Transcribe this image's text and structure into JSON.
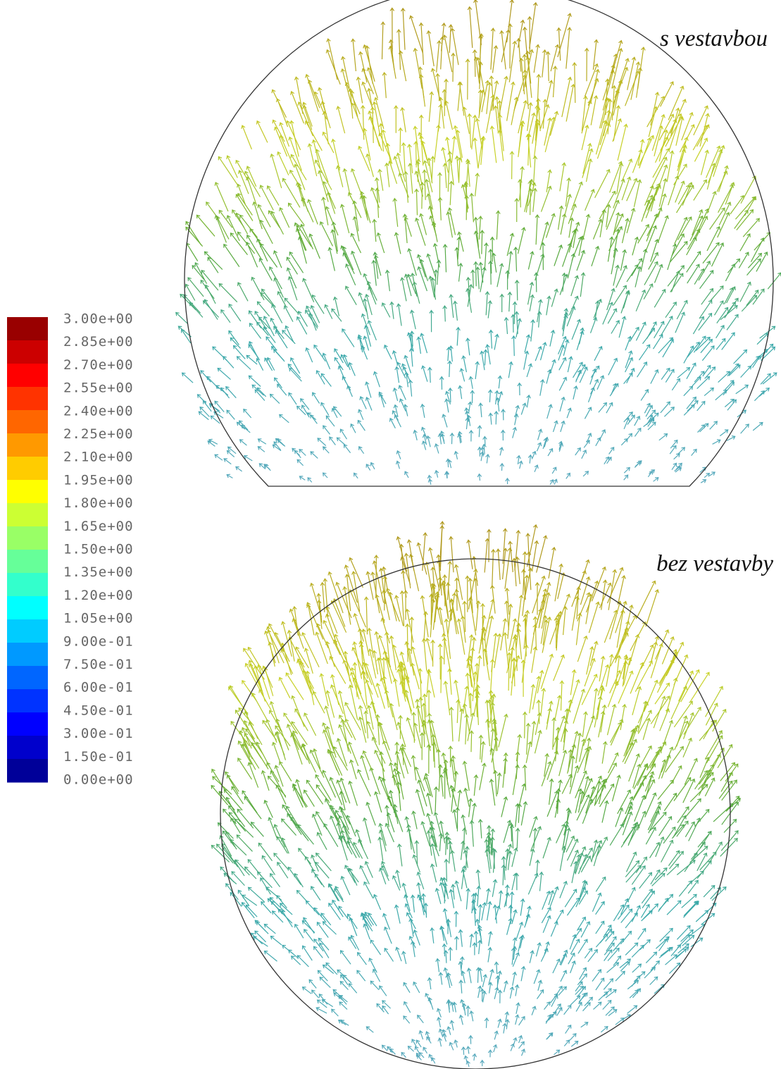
{
  "colorbar": {
    "labels": [
      "3.00e+00",
      "2.85e+00",
      "2.70e+00",
      "2.55e+00",
      "2.40e+00",
      "2.25e+00",
      "2.10e+00",
      "1.95e+00",
      "1.80e+00",
      "1.65e+00",
      "1.50e+00",
      "1.35e+00",
      "1.20e+00",
      "1.05e+00",
      "9.00e-01",
      "7.50e-01",
      "6.00e-01",
      "4.50e-01",
      "3.00e-01",
      "1.50e-01",
      "0.00e+00"
    ]
  },
  "panels": [
    {
      "title": "s vestavbou"
    },
    {
      "title": "bez vestavby"
    }
  ]
}
